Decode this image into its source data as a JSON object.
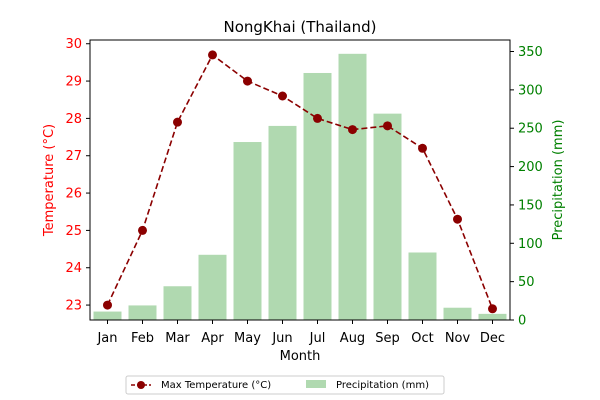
{
  "chart_data": {
    "type": "bar+line",
    "title": "NongKhai (Thailand)",
    "xlabel": "Month",
    "ylabel_left": "Temperature (°C)",
    "ylabel_right": "Precipitation (mm)",
    "categories": [
      "Jan",
      "Feb",
      "Mar",
      "Apr",
      "May",
      "Jun",
      "Jul",
      "Aug",
      "Sep",
      "Oct",
      "Nov",
      "Dec"
    ],
    "series": [
      {
        "name": "Max Temperature (°C)",
        "kind": "line",
        "axis": "left",
        "color": "#8b0000",
        "values": [
          23.0,
          25.0,
          27.9,
          29.7,
          29.0,
          28.6,
          28.0,
          27.7,
          27.8,
          27.2,
          25.3,
          22.9
        ]
      },
      {
        "name": "Precipitation (mm)",
        "kind": "bar",
        "axis": "right",
        "color": "#b0d9b0",
        "values": [
          11,
          19,
          44,
          85,
          232,
          253,
          322,
          347,
          269,
          88,
          16,
          8
        ]
      }
    ],
    "ylim_left": [
      22.6,
      30.1
    ],
    "yticks_left": [
      "23",
      "24",
      "25",
      "26",
      "27",
      "28",
      "29",
      "30"
    ],
    "ylim_right": [
      0,
      365
    ],
    "yticks_right": [
      "0",
      "50",
      "100",
      "150",
      "200",
      "250",
      "300",
      "350"
    ],
    "left_axis_color": "#ff0000",
    "right_axis_color": "#008000",
    "grid": false,
    "legend_placement": "bottom-center"
  }
}
